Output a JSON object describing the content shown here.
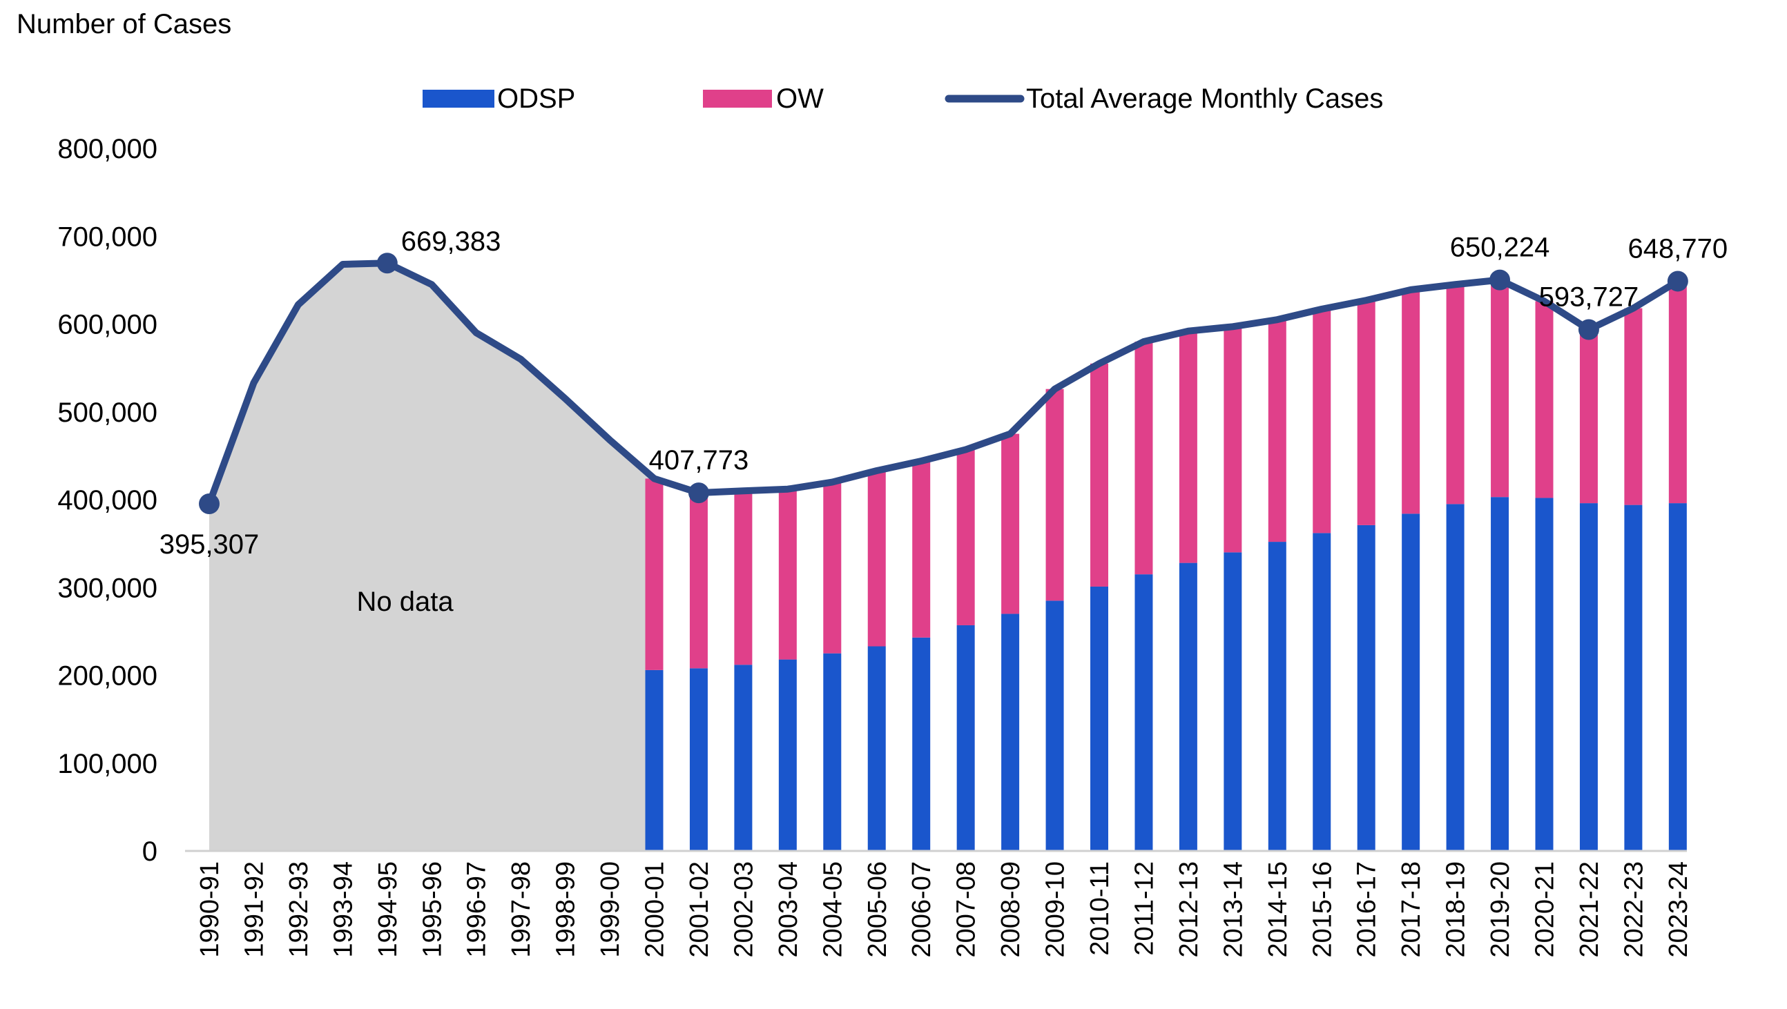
{
  "chart_data": {
    "type": "bar",
    "stacked": true,
    "ylabel": "Number of Cases",
    "ylim": [
      0,
      800000
    ],
    "yticks": [
      0,
      100000,
      200000,
      300000,
      400000,
      500000,
      600000,
      700000,
      800000
    ],
    "ytick_labels": [
      "0",
      "100,000",
      "200,000",
      "300,000",
      "400,000",
      "500,000",
      "600,000",
      "700,000",
      "800,000"
    ],
    "grid": false,
    "legend_position": "top",
    "categories": [
      "1990-91",
      "1991-92",
      "1992-93",
      "1993-94",
      "1994-95",
      "1995-96",
      "1996-97",
      "1997-98",
      "1998-99",
      "1999-00",
      "2000-01",
      "2001-02",
      "2002-03",
      "2003-04",
      "2004-05",
      "2005-06",
      "2006-07",
      "2007-08",
      "2008-09",
      "2009-10",
      "2010-11",
      "2011-12",
      "2012-13",
      "2013-14",
      "2014-15",
      "2015-16",
      "2016-17",
      "2017-18",
      "2018-19",
      "2019-20",
      "2020-21",
      "2021-22",
      "2022-23",
      "2023-24"
    ],
    "series": [
      {
        "name": "ODSP",
        "kind": "bar",
        "color": "#1a56cc",
        "values": [
          null,
          null,
          null,
          null,
          null,
          null,
          null,
          null,
          null,
          null,
          206000,
          208000,
          212000,
          218000,
          225000,
          233000,
          243000,
          257000,
          270000,
          285000,
          301000,
          315000,
          328000,
          340000,
          352000,
          362000,
          371000,
          384000,
          395000,
          403000,
          402000,
          396000,
          394000,
          396000
        ]
      },
      {
        "name": "OW",
        "kind": "bar",
        "color": "#e0408a",
        "values": [
          null,
          null,
          null,
          null,
          null,
          null,
          null,
          null,
          null,
          null,
          218000,
          199773,
          198000,
          194000,
          195000,
          200000,
          201000,
          200000,
          205000,
          241000,
          254000,
          265000,
          264000,
          257000,
          253000,
          255000,
          256000,
          255000,
          250000,
          247224,
          224000,
          197727,
          224000,
          252770
        ]
      },
      {
        "name": "Total Average Monthly Cases",
        "kind": "line",
        "color": "#2e4a87",
        "values": [
          395307,
          533000,
          622000,
          668000,
          669383,
          645000,
          590000,
          560000,
          515000,
          468000,
          424000,
          407773,
          410000,
          412000,
          420000,
          433000,
          444000,
          457000,
          475000,
          526000,
          555000,
          580000,
          592000,
          597000,
          605000,
          617000,
          627000,
          639000,
          645000,
          650224,
          626000,
          593727,
          618000,
          648770
        ]
      }
    ],
    "point_labels": [
      {
        "index": 0,
        "text": "395,307",
        "placement": "below"
      },
      {
        "index": 4,
        "text": "669,383",
        "placement": "above-right"
      },
      {
        "index": 11,
        "text": "407,773",
        "placement": "above"
      },
      {
        "index": 29,
        "text": "650,224",
        "placement": "above"
      },
      {
        "index": 31,
        "text": "593,727",
        "placement": "above"
      },
      {
        "index": 33,
        "text": "648,770",
        "placement": "above"
      }
    ],
    "shaded_region": {
      "from": "1990-91",
      "to": "2000-01",
      "label": "No data",
      "color": "#d4d4d4"
    }
  }
}
